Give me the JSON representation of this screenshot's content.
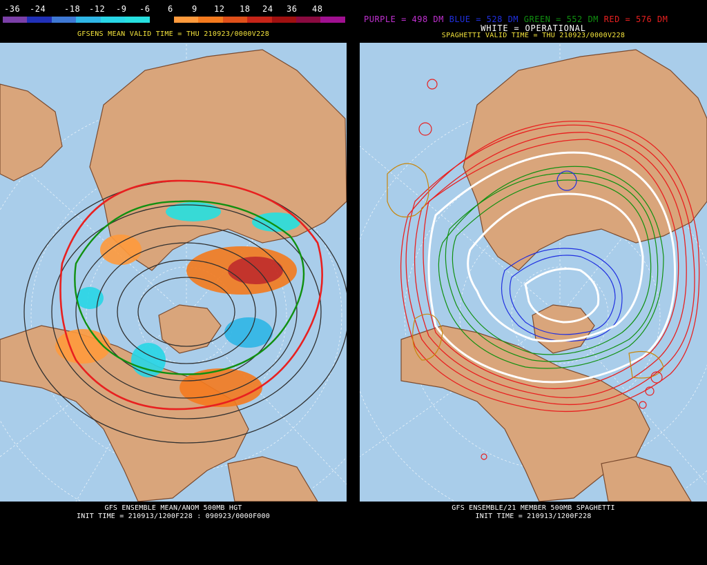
{
  "left_panel": {
    "colorbar": {
      "labels": [
        "-36",
        "-24",
        "-18",
        "-12",
        "-9",
        "-6",
        "6",
        "9",
        "12",
        "18",
        "24",
        "36",
        "48"
      ],
      "colors": [
        "#7b3fa8",
        "#2030b8",
        "#3e78d4",
        "#2fb6e6",
        "#28d6e6",
        "#26e0e0",
        "#000000",
        "#ff9a3c",
        "#f47a1e",
        "#e0501a",
        "#c62418",
        "#a01010",
        "#8a0a40",
        "#a01090"
      ]
    },
    "valid_time": "GFSENS MEAN VALID TIME = THU 210923/0000V228",
    "footer_line1": "GFS ENSEMBLE MEAN/ANOM 500MB HGT",
    "footer_line2": "INIT TIME = 210913/1200F228 : 090923/0000F000"
  },
  "right_panel": {
    "legend": {
      "purple": "PURPLE = 498 DM",
      "blue": "BLUE = 528 DM",
      "green": "GREEN = 552 DM",
      "red": "RED = 576 DM"
    },
    "legend_colors": {
      "purple": "#c030d0",
      "blue": "#2030e0",
      "green": "#109010",
      "red": "#e82020"
    },
    "operational": "WHITE = OPERATIONAL",
    "valid_time": "SPAGHETTI VALID TIME = THU 210923/0000V228",
    "footer_line1": "GFS ENSEMBLE/21 MEMBER 500MB SPAGHETTI",
    "footer_line2": "INIT TIME = 210913/1200F228"
  },
  "map_colors": {
    "ocean": "#a9cdea",
    "land": "#d9a57b",
    "border": "#7a4a2e"
  }
}
